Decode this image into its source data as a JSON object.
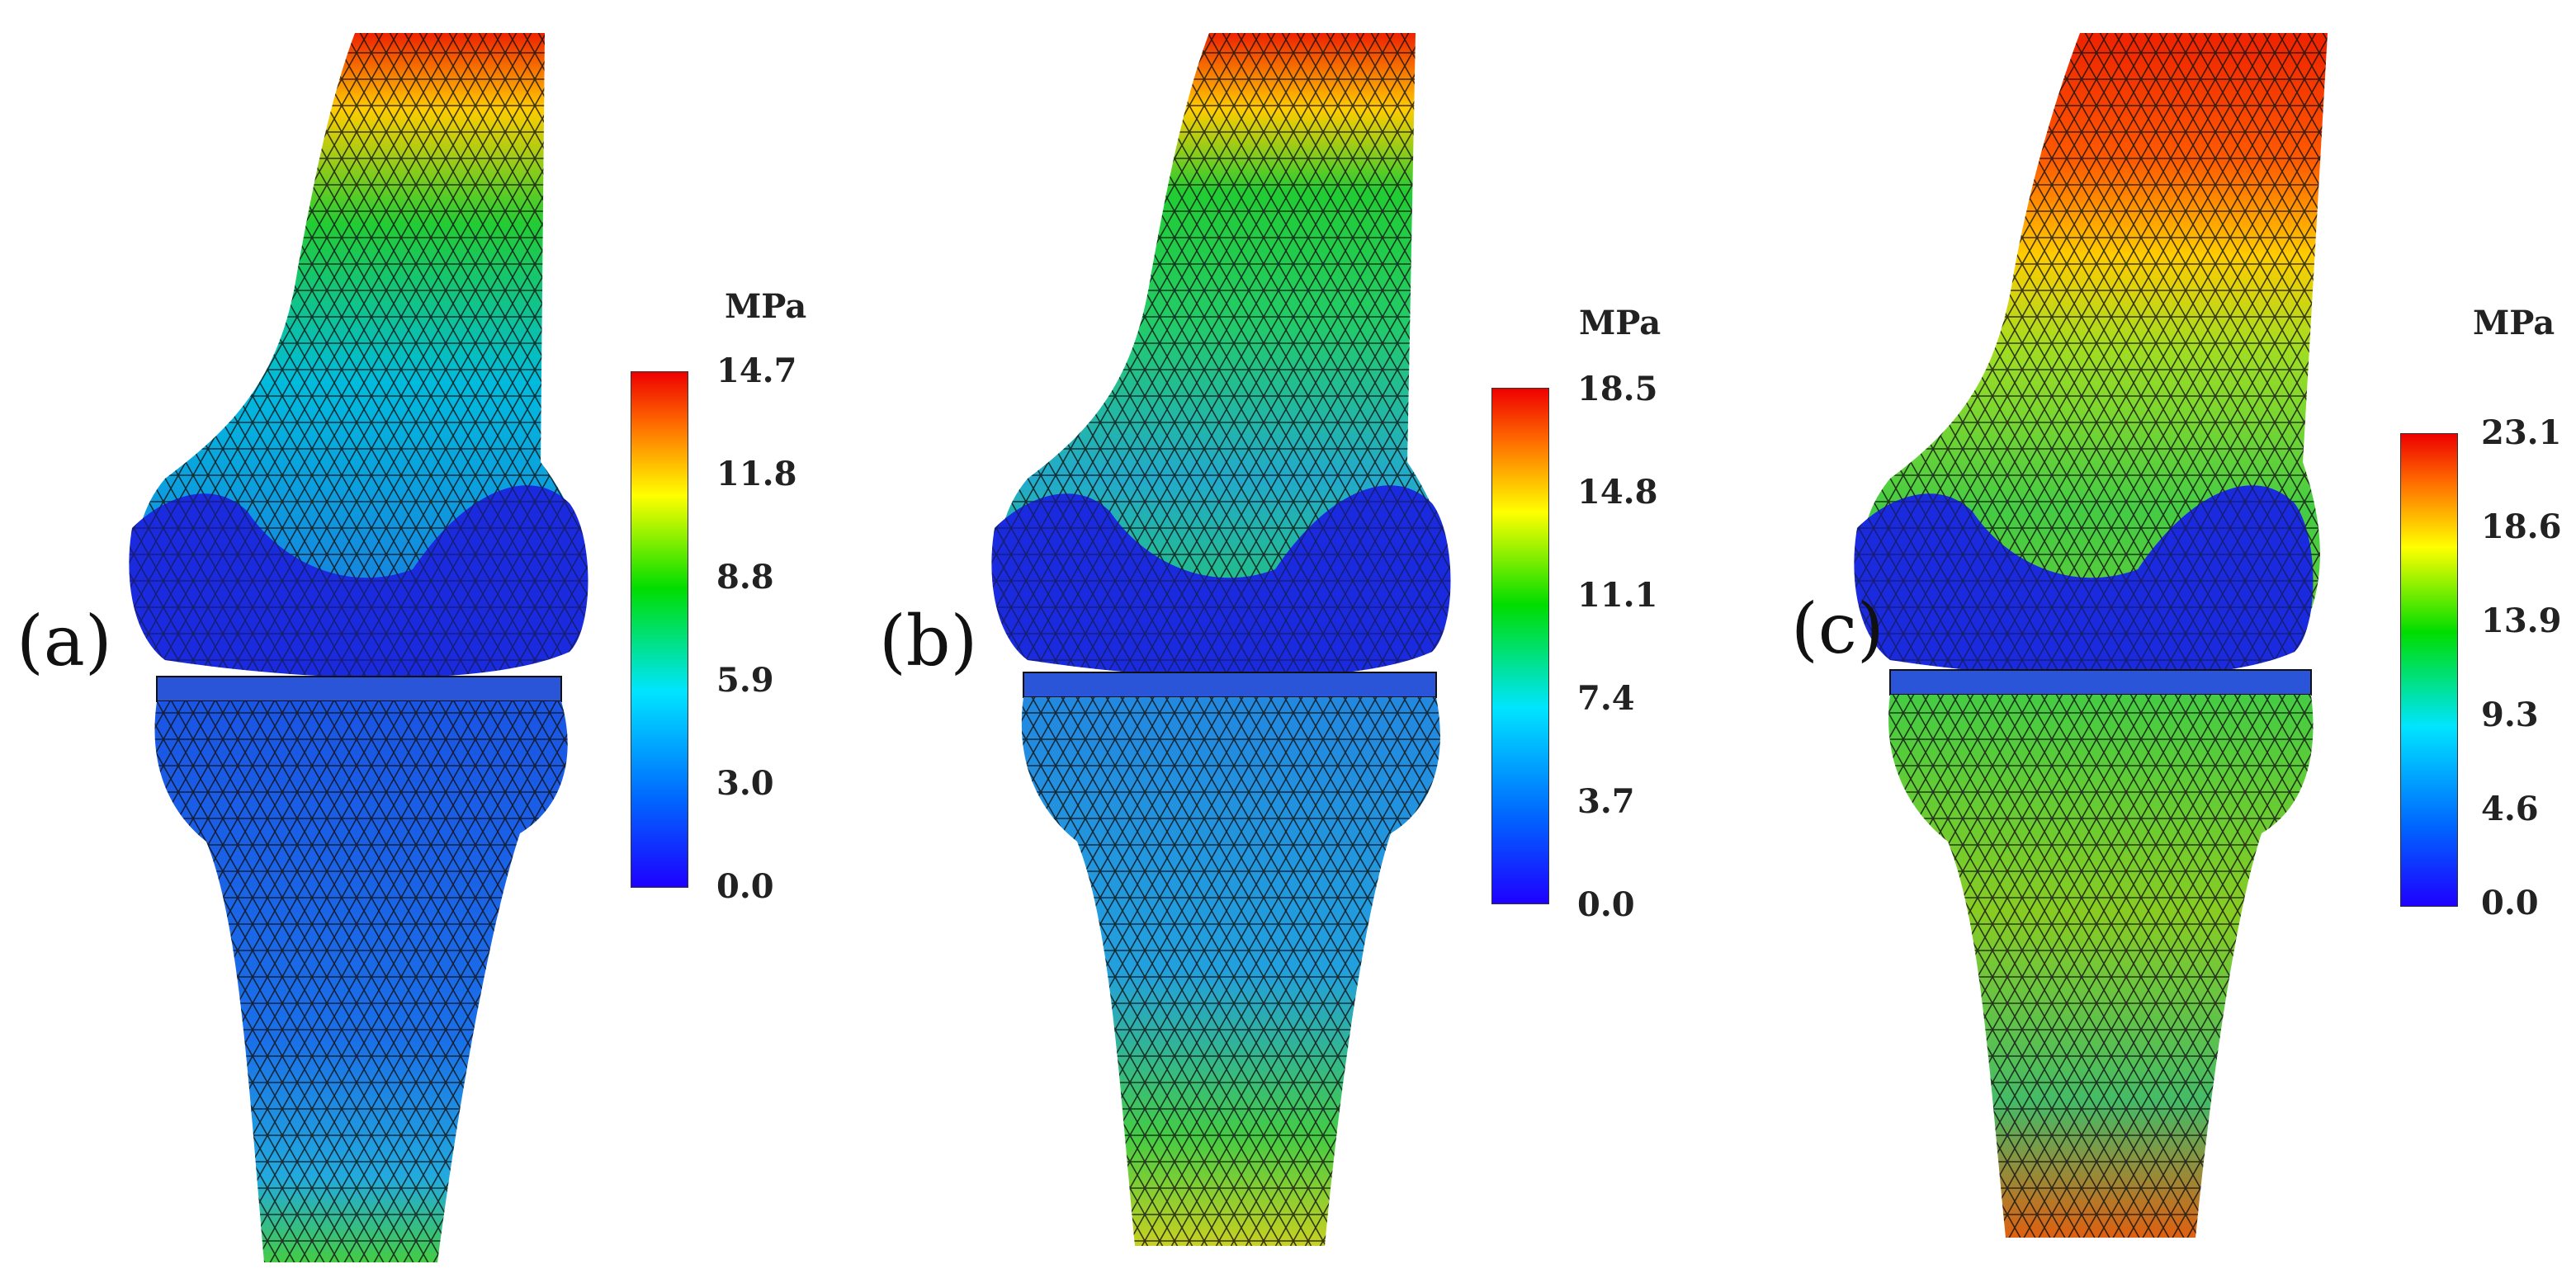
{
  "panels": [
    {
      "label": "(a)",
      "unit": "MPa",
      "ticks": [
        "14.7",
        "11.8",
        "8.8",
        "5.9",
        "3.0",
        "0.0"
      ]
    },
    {
      "label": "(b)",
      "unit": "MPa",
      "ticks": [
        "18.5",
        "14.8",
        "11.1",
        "7.4",
        "3.7",
        "0.0"
      ]
    },
    {
      "label": "(c)",
      "unit": "MPa",
      "ticks": [
        "23.1",
        "18.6",
        "13.9",
        "9.3",
        "4.6",
        "0.0"
      ]
    }
  ],
  "colors": {
    "low": "#1e00ff",
    "mid_low": "#00e5ff",
    "mid": "#00dd00",
    "mid_high": "#ffff00",
    "high": "#ee0000",
    "mesh": "#111111"
  }
}
